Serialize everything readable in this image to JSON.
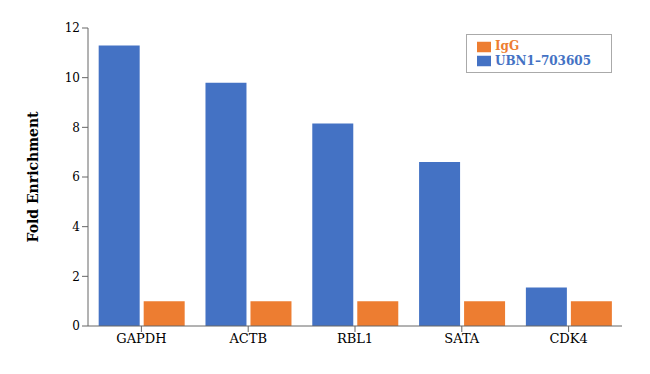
{
  "chart_data": {
    "type": "bar",
    "categories": [
      "GAPDH",
      "ACTB",
      "RBL1",
      "SATA",
      "CDK4"
    ],
    "series": [
      {
        "name": "UBN1–703605",
        "color": "#4472C4",
        "values": [
          11.3,
          9.8,
          8.15,
          6.6,
          1.55
        ]
      },
      {
        "name": "IgG",
        "color": "#ED7D31",
        "values": [
          1.0,
          1.0,
          1.0,
          1.0,
          1.0
        ]
      }
    ],
    "ylabel": "Fold Enrichment",
    "ylim": [
      0,
      12
    ],
    "yticks": [
      0,
      2,
      4,
      6,
      8,
      10,
      12
    ],
    "grid": false,
    "legend": "upper right"
  }
}
